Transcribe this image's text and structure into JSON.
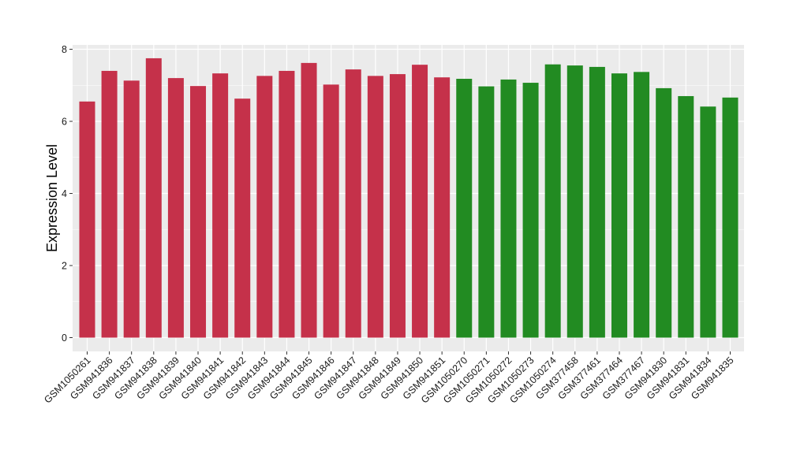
{
  "chart_data": {
    "type": "bar",
    "xlabel": "",
    "ylabel": "Expression Level",
    "ylim": [
      0,
      8.1
    ],
    "yticks": [
      0,
      2,
      4,
      6,
      8
    ],
    "grid": true,
    "legend": "none",
    "categories": [
      "GSM1050261",
      "GSM941836",
      "GSM941837",
      "GSM941838",
      "GSM941839",
      "GSM941840",
      "GSM941841",
      "GSM941842",
      "GSM941843",
      "GSM941844",
      "GSM941845",
      "GSM941846",
      "GSM941847",
      "GSM941848",
      "GSM941849",
      "GSM941850",
      "GSM941851",
      "GSM1050270",
      "GSM1050271",
      "GSM1050272",
      "GSM1050273",
      "GSM1050274",
      "GSM377458",
      "GSM377461",
      "GSM377464",
      "GSM377467",
      "GSM941830",
      "GSM941831",
      "GSM941834",
      "GSM941835"
    ],
    "values": [
      6.55,
      7.4,
      7.13,
      7.75,
      7.2,
      6.98,
      7.33,
      6.63,
      7.26,
      7.4,
      7.62,
      7.02,
      7.44,
      7.26,
      7.31,
      7.57,
      7.22,
      7.18,
      6.97,
      7.16,
      7.07,
      7.58,
      7.55,
      7.51,
      7.33,
      7.37,
      6.92,
      6.7,
      6.41,
      6.66
    ],
    "groups": [
      "a",
      "a",
      "a",
      "a",
      "a",
      "a",
      "a",
      "a",
      "a",
      "a",
      "a",
      "a",
      "a",
      "a",
      "a",
      "a",
      "a",
      "b",
      "b",
      "b",
      "b",
      "b",
      "b",
      "b",
      "b",
      "b",
      "b",
      "b",
      "b",
      "b"
    ],
    "colors": {
      "a": "#C5314A",
      "b": "#228B22"
    },
    "panel_bg": "#EBEBEB",
    "grid_color": "#FFFFFF"
  }
}
